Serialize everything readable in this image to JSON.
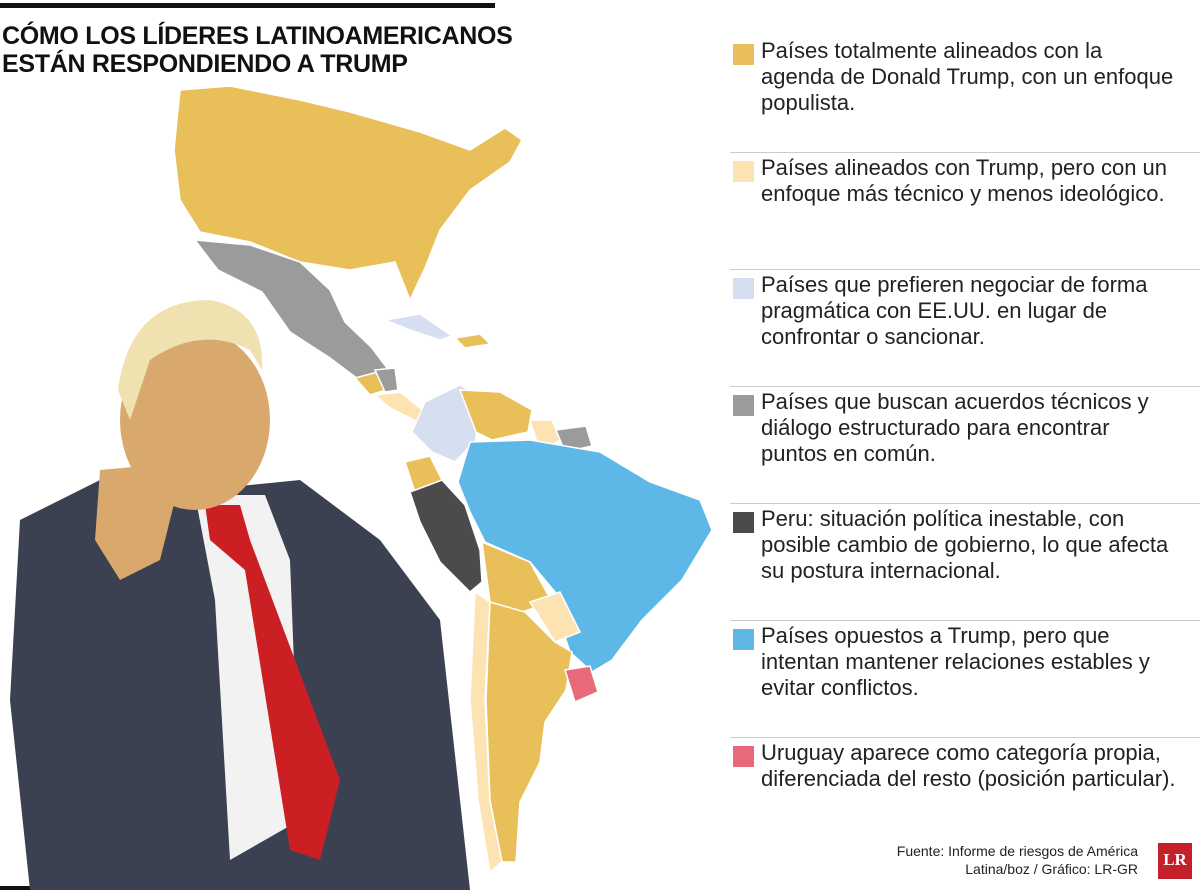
{
  "header": {
    "title": "CÓMO LOS LÍDERES LATINOAMERICANOS ESTÁN RESPONDIENDO A TRUMP"
  },
  "legend": [
    {
      "color": "#e8bf58",
      "text": "Países totalmente alineados con la agenda de Donald Trump, con un enfoque populista."
    },
    {
      "color": "#fde3b2",
      "text": "Países alineados con Trump, pero con un enfoque más técnico y menos ideológico."
    },
    {
      "color": "#d5dff0",
      "text": "Países que prefieren negociar de forma pragmática con EE.UU. en lugar de confrontar o sancionar."
    },
    {
      "color": "#9b9b9b",
      "text": "Países que buscan acuerdos técnicos y diálogo estructurado para encontrar puntos en común."
    },
    {
      "color": "#4b4b4b",
      "text": "Peru: situación política inestable, con posible cambio de gobierno, lo que afecta su postura internacional."
    },
    {
      "color": "#5db8e8",
      "text": "Países opuestos a Trump, pero que intentan mantener relaciones estables y evitar conflictos."
    },
    {
      "color": "#e8697a",
      "text": "Uruguay aparece como categoría propia, diferenciada del resto (posición particular)."
    }
  ],
  "source": "Fuente: Informe de riesgos de América Latina/boz / Gráfico: LR-GR",
  "logo": "LR"
}
